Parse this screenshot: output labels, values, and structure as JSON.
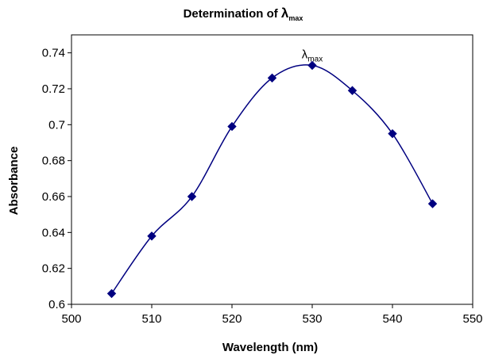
{
  "chart_data": {
    "type": "scatter",
    "title": {
      "prefix": "Determination of ",
      "symbol": "λ",
      "subscript": "max"
    },
    "xlabel": "Wavelength (nm)",
    "ylabel": "Absorbance",
    "xlim": [
      500,
      550
    ],
    "ylim": [
      0.6,
      0.75
    ],
    "xticks": [
      500,
      510,
      520,
      530,
      540,
      550
    ],
    "xtick_labels": [
      "500",
      "510",
      "520",
      "530",
      "540",
      "550"
    ],
    "yticks": [
      0.6,
      0.62,
      0.64,
      0.66,
      0.68,
      0.7,
      0.72,
      0.74
    ],
    "ytick_labels": [
      "0.6",
      "0.62",
      "0.64",
      "0.66",
      "0.68",
      "0.7",
      "0.72",
      "0.74"
    ],
    "grid": false,
    "legend": "none",
    "smooth_line": true,
    "marker": "diamond",
    "series": [
      {
        "color": "#000080",
        "x": [
          505,
          510,
          515,
          520,
          525,
          530,
          535,
          540,
          545
        ],
        "y": [
          0.606,
          0.638,
          0.66,
          0.699,
          0.726,
          0.733,
          0.719,
          0.695,
          0.656
        ]
      }
    ],
    "annotations": [
      {
        "symbol": "λ",
        "subscript": "max",
        "x": 530,
        "y": 0.733
      }
    ]
  }
}
